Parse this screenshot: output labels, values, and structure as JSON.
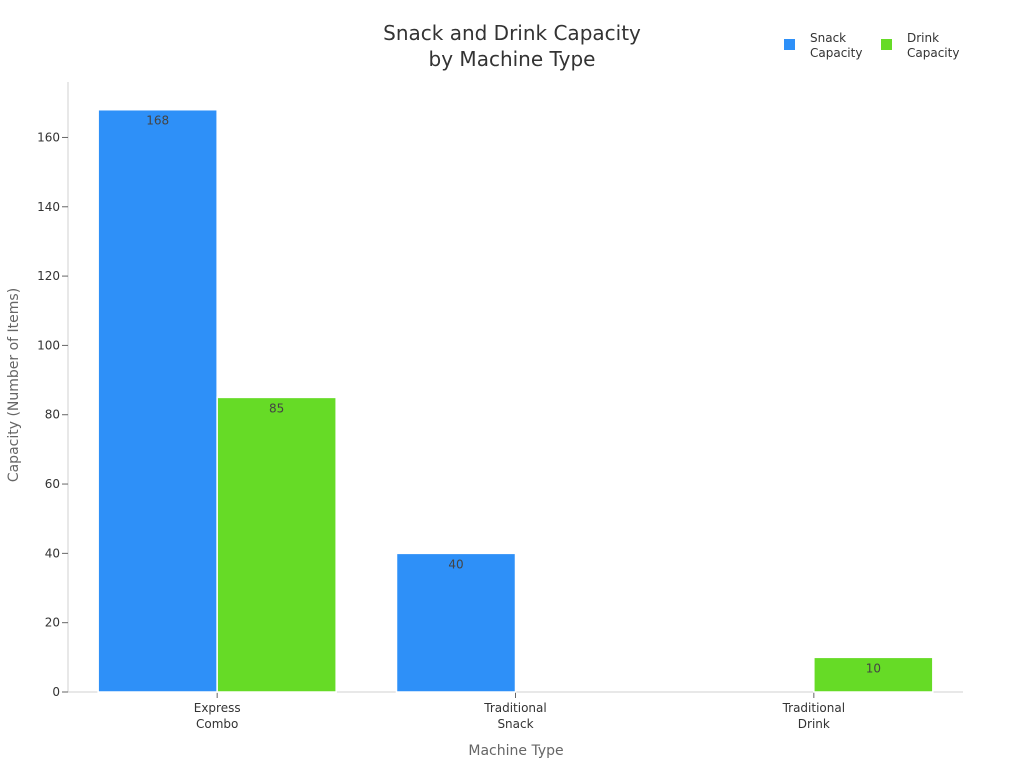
{
  "chart_data": {
    "type": "bar",
    "title_lines": [
      "Snack and Drink Capacity",
      "by Machine Type"
    ],
    "xlabel": "Machine Type",
    "ylabel": "Capacity (Number of Items)",
    "categories": [
      [
        "Express",
        "Combo"
      ],
      [
        "Traditional",
        "Snack"
      ],
      [
        "Traditional",
        "Drink"
      ]
    ],
    "series": [
      {
        "name_lines": [
          "Snack",
          "Capacity"
        ],
        "color": "#2E90F8",
        "values": [
          168,
          40,
          null
        ]
      },
      {
        "name_lines": [
          "Drink",
          "Capacity"
        ],
        "color": "#66DB26",
        "values": [
          85,
          null,
          10
        ]
      }
    ],
    "ylim": [
      0,
      176
    ],
    "yticks": [
      0,
      20,
      40,
      60,
      80,
      100,
      120,
      140,
      160
    ],
    "grid": false,
    "legend_position": "top-right"
  }
}
